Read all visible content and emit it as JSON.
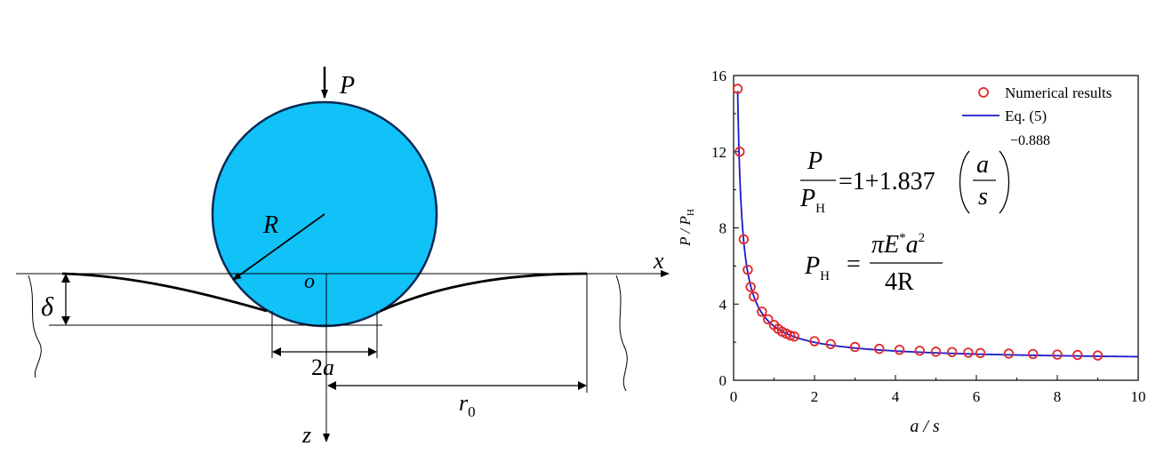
{
  "diagram": {
    "load_label": "P",
    "radius_label": "R",
    "origin_label": "o",
    "x_axis_label": "x",
    "z_axis_label": "z",
    "depth_label": "δ",
    "contact_width_label": {
      "coef": "2",
      "var": "a"
    },
    "r0_label": {
      "var": "r",
      "sub": "0"
    }
  },
  "chart_data": {
    "type": "scatter",
    "xlabel": "a / s",
    "ylabel": "P / P_H",
    "xlim": [
      0,
      10
    ],
    "ylim": [
      0,
      16
    ],
    "xticks": [
      "0",
      "2",
      "4",
      "6",
      "8",
      "10"
    ],
    "yticks": [
      "0",
      "4",
      "8",
      "12",
      "16"
    ],
    "grid": false,
    "legend_position": "top-right",
    "legend": [
      "Numerical results",
      "Eq. (5)"
    ],
    "series": [
      {
        "name": "Numerical results",
        "marker": "open-circle",
        "color": "#e0282a",
        "x": [
          0.1,
          0.15,
          0.25,
          0.35,
          0.42,
          0.5,
          0.7,
          0.85,
          1.0,
          1.1,
          1.2,
          1.3,
          1.4,
          1.5,
          2.0,
          2.4,
          3.0,
          3.6,
          4.1,
          4.6,
          5.0,
          5.4,
          5.8,
          6.1,
          6.8,
          7.4,
          8.0,
          8.5,
          9.0
        ],
        "y": [
          15.3,
          12.0,
          7.4,
          5.8,
          4.9,
          4.4,
          3.6,
          3.2,
          2.9,
          2.7,
          2.55,
          2.45,
          2.35,
          2.3,
          2.05,
          1.9,
          1.75,
          1.65,
          1.6,
          1.55,
          1.5,
          1.48,
          1.45,
          1.43,
          1.4,
          1.38,
          1.35,
          1.33,
          1.3
        ]
      },
      {
        "name": "Eq. (5)",
        "style": "line",
        "color": "#1a1acc",
        "function": "1+1.837*(x)^(-0.888)",
        "x_range": [
          0.1,
          10
        ]
      }
    ],
    "annotations": {
      "eq1": {
        "lhs_num": "P",
        "lhs_den": "P",
        "lhs_den_sub": "H",
        "rhs_prefix": "=1+1.837",
        "frac_num": "a",
        "frac_den": "s",
        "exponent": "−0.888"
      },
      "eq2": {
        "lhs": "P",
        "lhs_sub": "H",
        "eq": "=",
        "num": "πE",
        "num_sup": "*",
        "num_tail": "a",
        "num_tail_sup": "2",
        "den": "4R"
      }
    }
  },
  "colors": {
    "sphere_fill": "#10c2f8",
    "sphere_stroke": "#0b2a55",
    "marker": "#e0282a",
    "curve": "#1a1acc"
  }
}
